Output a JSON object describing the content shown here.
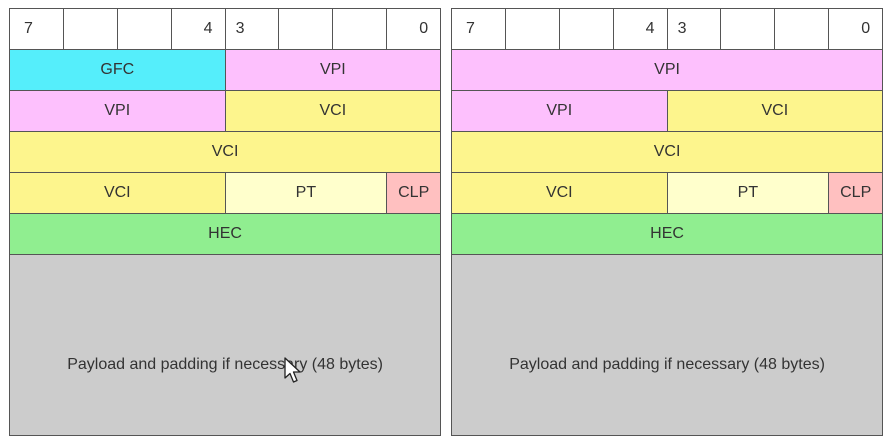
{
  "uni_table": {
    "bits": {
      "b7": "7",
      "b4": "4",
      "b3": "3",
      "b0": "0"
    },
    "row1": {
      "gfc": "GFC",
      "vpi": "VPI"
    },
    "row2": {
      "vpi": "VPI",
      "vci": "VCI"
    },
    "row3": {
      "vci": "VCI"
    },
    "row4": {
      "vci": "VCI",
      "pt": "PT",
      "clp": "CLP"
    },
    "row5": {
      "hec": "HEC"
    },
    "payload": "Payload and padding if necessary (48 bytes)"
  },
  "nni_table": {
    "bits": {
      "b7": "7",
      "b4": "4",
      "b3": "3",
      "b0": "0"
    },
    "row1": {
      "vpi": "VPI"
    },
    "row2": {
      "vpi": "VPI",
      "vci": "VCI"
    },
    "row3": {
      "vci": "VCI"
    },
    "row4": {
      "vci": "VCI",
      "pt": "PT",
      "clp": "CLP"
    },
    "row5": {
      "hec": "HEC"
    },
    "payload": "Payload and padding if necessary (48 bytes)"
  },
  "colors": {
    "gfc": "#55eefb",
    "vpi": "#fdc0fd",
    "vci": "#fdf58d",
    "pt": "#ffffcc",
    "clp": "#ffc0c0",
    "hec": "#90ee90",
    "payload": "#cccccc",
    "border": "#555555"
  },
  "icons": {
    "cursor": "mouse-pointer-icon"
  }
}
